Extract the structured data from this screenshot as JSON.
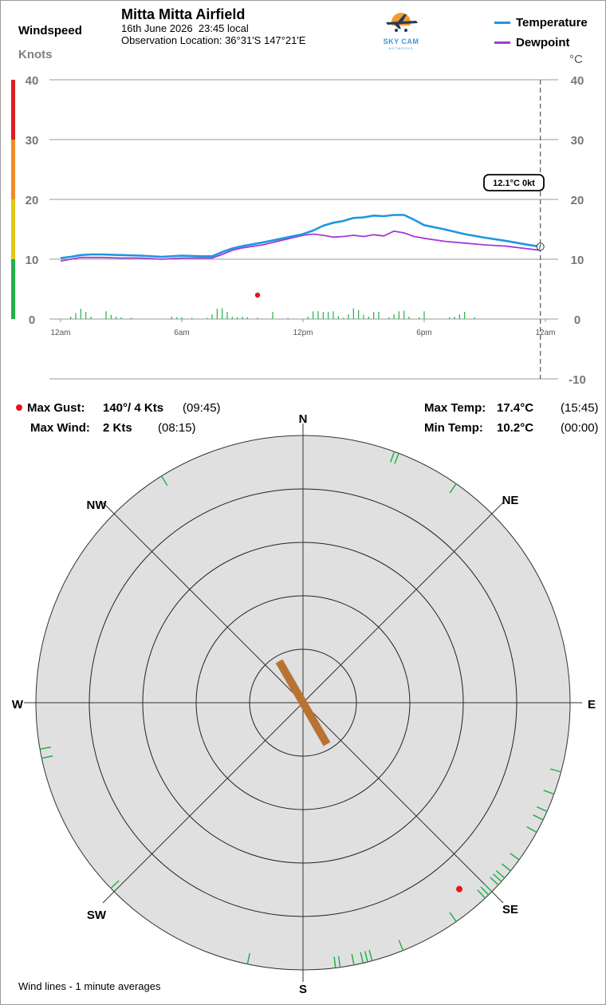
{
  "header": {
    "title": "Mitta Mitta Airfield",
    "date": "16th June 2026",
    "time": "23:45 local",
    "location": "Observation Location: 36°31'S 147°21'E",
    "windspeed_label": "Windspeed",
    "knots_label": "Knots",
    "celsius_label": "°C",
    "logo_text": "SKY CAM",
    "logo_sub": "NETWORKS"
  },
  "legend": {
    "temperature": "Temperature",
    "dewpoint": "Dewpoint",
    "temperature_color": "#1e96e0",
    "dewpoint_color": "#a43ad8"
  },
  "stats": {
    "max_gust_label": "Max Gust:",
    "max_gust_value": "140°/ 4 Kts",
    "max_gust_time": "(09:45)",
    "max_wind_label": "Max Wind:",
    "max_wind_value": "2 Kts",
    "max_wind_time": "(08:15)",
    "max_temp_label": "Max Temp:",
    "max_temp_value": "17.4°C",
    "max_temp_time": "(15:45)",
    "min_temp_label": "Min Temp:",
    "min_temp_value": "10.2°C",
    "min_temp_time": "(00:00)"
  },
  "footnote": "Wind lines - 1 minute averages",
  "chart_data": [
    {
      "type": "line",
      "current_label": "12.1°C  0kt",
      "x_tick_labels": [
        "12am",
        "6am",
        "12pm",
        "6pm",
        "12am"
      ],
      "x_tick_hours": [
        0,
        6,
        12,
        18,
        24
      ],
      "left_axis": {
        "ticks": [
          0,
          10,
          20,
          30,
          40
        ],
        "ylim": [
          0,
          40
        ],
        "unit": "Knots",
        "scale_colors": [
          "#22b14c",
          "#e6c619",
          "#f08c28",
          "#d92020"
        ]
      },
      "right_axis": {
        "ticks": [
          -10,
          0,
          10,
          20,
          30,
          40
        ],
        "ylim": [
          -10,
          40
        ],
        "unit": "°C"
      },
      "series": [
        {
          "name": "Temperature",
          "color": "#1e96e0",
          "x": [
            0,
            0.5,
            1,
            1.5,
            2,
            3,
            4,
            5,
            6,
            7,
            7.5,
            8,
            8.5,
            9,
            10,
            11,
            12,
            12.5,
            13,
            13.5,
            14,
            14.5,
            15,
            15.5,
            16,
            16.5,
            17,
            17.5,
            18,
            19,
            20,
            21,
            22,
            23,
            23.75
          ],
          "y": [
            10.2,
            10.4,
            10.7,
            10.8,
            10.8,
            10.7,
            10.6,
            10.4,
            10.6,
            10.5,
            10.5,
            11.2,
            11.8,
            12.2,
            12.8,
            13.5,
            14.2,
            14.8,
            15.6,
            16.1,
            16.4,
            16.9,
            17.0,
            17.3,
            17.2,
            17.4,
            17.4,
            16.6,
            15.7,
            15.0,
            14.2,
            13.6,
            13.1,
            12.5,
            12.1
          ]
        },
        {
          "name": "Dewpoint",
          "color": "#a43ad8",
          "x": [
            0,
            0.5,
            1,
            1.5,
            2,
            3,
            4,
            5,
            6,
            7,
            7.5,
            8,
            8.5,
            9,
            10,
            11,
            12,
            12.5,
            13,
            13.5,
            14,
            14.5,
            15,
            15.5,
            16,
            16.5,
            17,
            17.5,
            18,
            19,
            20,
            21,
            22,
            23,
            23.75
          ],
          "y": [
            9.7,
            10.0,
            10.3,
            10.3,
            10.3,
            10.2,
            10.2,
            10.0,
            10.2,
            10.2,
            10.2,
            10.8,
            11.5,
            11.9,
            12.4,
            13.2,
            14.0,
            14.2,
            14.0,
            13.7,
            13.8,
            14.0,
            13.8,
            14.1,
            13.9,
            14.7,
            14.4,
            13.8,
            13.5,
            13.0,
            12.7,
            12.4,
            12.2,
            11.8,
            11.5
          ]
        }
      ],
      "wind_bars": {
        "x": [
          0.5,
          0.75,
          1,
          1.25,
          1.5,
          2.25,
          2.5,
          2.75,
          3,
          3.5,
          5.5,
          5.75,
          6,
          6.5,
          7.25,
          7.5,
          7.75,
          8,
          8.25,
          8.5,
          8.75,
          9,
          9.25,
          9.75,
          10.5,
          11.25,
          12.25,
          12.5,
          12.75,
          13,
          13.25,
          13.5,
          13.75,
          14,
          14.25,
          14.5,
          14.75,
          15,
          15.25,
          15.5,
          15.75,
          16.25,
          16.5,
          16.75,
          17,
          17.25,
          17.75,
          18,
          19.25,
          19.5,
          19.75,
          20,
          20.5
        ],
        "knots": [
          0.4,
          1.0,
          1.7,
          1.2,
          0.4,
          1.3,
          0.7,
          0.4,
          0.3,
          0.2,
          0.4,
          0.3,
          0.3,
          0.2,
          0.2,
          0.8,
          1.7,
          1.8,
          1.2,
          0.4,
          0.3,
          0.4,
          0.3,
          0.2,
          1.2,
          0.2,
          0.4,
          1.3,
          1.3,
          1.2,
          1.2,
          1.3,
          0.5,
          0.2,
          0.8,
          1.8,
          1.5,
          0.7,
          0.4,
          1.2,
          1.2,
          0.3,
          0.8,
          1.3,
          1.4,
          0.4,
          0.3,
          1.3,
          0.3,
          0.4,
          0.8,
          1.2,
          0.3
        ]
      },
      "max_gust": {
        "time_hours": 9.75,
        "knots": 4
      }
    },
    {
      "type": "scatter",
      "subtype": "wind-rose",
      "direction_labels": [
        "N",
        "NE",
        "E",
        "SE",
        "S",
        "SW",
        "W",
        "NW"
      ],
      "ring_count": 5,
      "current_direction_deg": 150,
      "max_gust": {
        "direction_deg": 140,
        "knots": 4
      },
      "direction_ticks_deg": [
        20,
        21,
        35,
        105,
        110,
        114,
        116,
        119,
        126,
        129,
        131,
        132,
        133,
        135,
        136,
        137,
        145,
        158,
        165,
        166,
        167,
        169,
        172,
        173,
        192,
        226,
        258,
        260,
        328
      ]
    }
  ]
}
